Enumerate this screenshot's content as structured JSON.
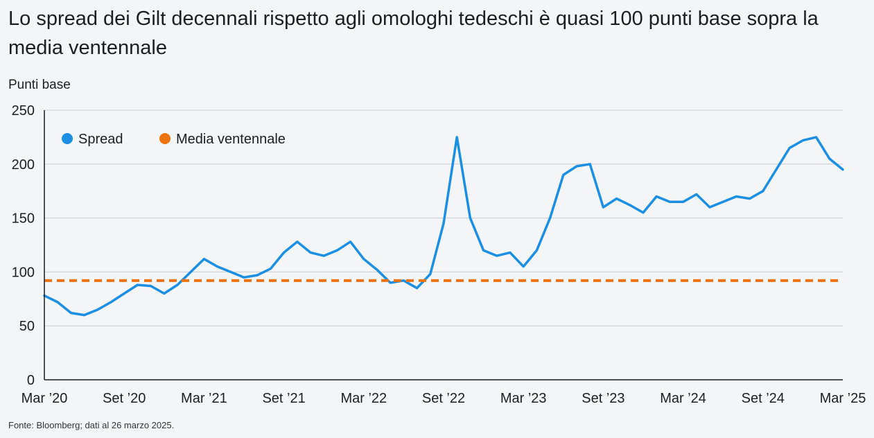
{
  "chart_data": {
    "type": "line",
    "title": "Lo spread dei Gilt decennali rispetto agli omologhi tedeschi è quasi 100 punti base sopra la media ventennale",
    "ylabel": "Punti base",
    "xlabel": "",
    "ylim": [
      0,
      250
    ],
    "yticks": [
      "0",
      "50",
      "100",
      "150",
      "200",
      "250"
    ],
    "ytick_values": [
      0,
      50,
      100,
      150,
      200,
      250
    ],
    "xticks": [
      "Mar ’20",
      "Set ’20",
      "Mar ’21",
      "Set ’21",
      "Mar ’22",
      "Set ’22",
      "Mar ’23",
      "Set ’23",
      "Mar ’24",
      "Set ’24",
      "Mar ’25"
    ],
    "xtick_dates": [
      "2020-03",
      "2020-09",
      "2021-03",
      "2021-09",
      "2022-03",
      "2022-09",
      "2023-03",
      "2023-09",
      "2024-03",
      "2024-09",
      "2025-03"
    ],
    "grid": true,
    "legend_position": "top-left",
    "series": [
      {
        "name": "Spread",
        "color": "#1a8fe3",
        "style": "solid",
        "x": [
          "2020-03",
          "2020-04",
          "2020-05",
          "2020-06",
          "2020-07",
          "2020-08",
          "2020-09",
          "2020-10",
          "2020-11",
          "2020-12",
          "2021-01",
          "2021-02",
          "2021-03",
          "2021-04",
          "2021-05",
          "2021-06",
          "2021-07",
          "2021-08",
          "2021-09",
          "2021-10",
          "2021-11",
          "2021-12",
          "2022-01",
          "2022-02",
          "2022-03",
          "2022-04",
          "2022-05",
          "2022-06",
          "2022-07",
          "2022-08",
          "2022-09",
          "2022-10",
          "2022-11",
          "2022-12",
          "2023-01",
          "2023-02",
          "2023-03",
          "2023-04",
          "2023-05",
          "2023-06",
          "2023-07",
          "2023-08",
          "2023-09",
          "2023-10",
          "2023-11",
          "2023-12",
          "2024-01",
          "2024-02",
          "2024-03",
          "2024-04",
          "2024-05",
          "2024-06",
          "2024-07",
          "2024-08",
          "2024-09",
          "2024-10",
          "2024-11",
          "2024-12",
          "2025-01",
          "2025-02",
          "2025-03"
        ],
        "values": [
          78,
          72,
          62,
          60,
          65,
          72,
          80,
          88,
          87,
          80,
          88,
          100,
          112,
          105,
          100,
          95,
          97,
          103,
          118,
          128,
          118,
          115,
          120,
          128,
          112,
          102,
          90,
          92,
          85,
          98,
          145,
          225,
          150,
          120,
          115,
          118,
          105,
          120,
          150,
          190,
          198,
          200,
          160,
          168,
          162,
          155,
          170,
          165,
          165,
          172,
          160,
          165,
          170,
          168,
          175,
          195,
          215,
          222,
          225,
          205,
          195
        ]
      },
      {
        "name": "Media ventennale",
        "color": "#ed7311",
        "style": "dashed",
        "constant": 92
      }
    ]
  },
  "source": "Fonte: Bloomberg; dati al 26 marzo 2025."
}
